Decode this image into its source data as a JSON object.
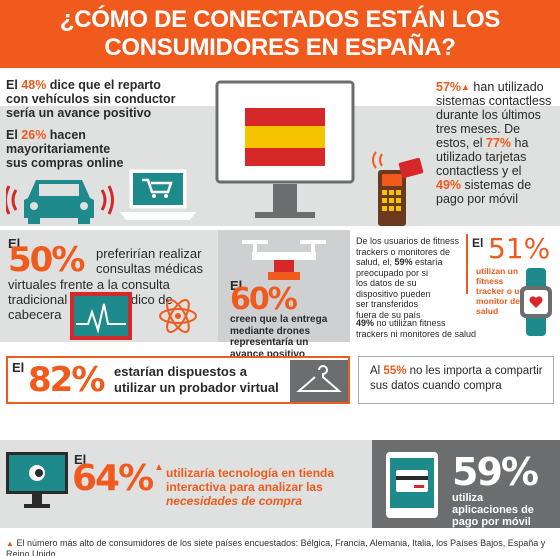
{
  "header": {
    "line1": "¿CÓMO DE CONECTADOS ESTÁN LOS",
    "line2": "CONSUMIDORES EN ESPAÑA?"
  },
  "top_left": {
    "s1_pre": "El ",
    "s1_pct": "48%",
    "s1_line1": " dice que el reparto",
    "s1_line2": "con vehículos sin conductor",
    "s1_line3": "sería un avance positivo",
    "s2_pre": "El ",
    "s2_pct": "26%",
    "s2_line1": " hacen",
    "s2_line2": "mayoritariamente",
    "s2_line3": "sus compras online"
  },
  "top_right": {
    "pct1": "57%",
    "l1": " han utilizado",
    "l2": "sistemas contactless",
    "l3": "durante los últimos",
    "l4": "tres meses. De",
    "l5_pre": "estos, el ",
    "pct2": "77%",
    "l5_post": " ha",
    "l6": "utilizado tarjetas",
    "l7": "contactless y el",
    "pct3": "49%",
    "l8_post": " sistemas de",
    "l9": "pago por móvil"
  },
  "middle_left": {
    "el": "El",
    "pct": "50%",
    "l1": "preferirían realizar",
    "l2": "consultas médicas",
    "l3": "virtuales frente a la consulta",
    "l4": "tradicional con su médico de",
    "l5": "cabecera"
  },
  "middle_center": {
    "el": "El",
    "pct": "60%",
    "l1": "creen que la entrega",
    "l2": "mediante drones",
    "l3": "representaría un",
    "l4": "avance positivo"
  },
  "middle_right": {
    "l1": "De los usuarios de fitness",
    "l2": "trackers o monitores de",
    "l3_pre": "salud, el, ",
    "pct": "59%",
    "l3_post": " estaría",
    "l4": "preocupado por si",
    "l5": "los datos de su",
    "l6": "dispositivo pueden",
    "l7": "ser transferidos",
    "l8": "fuera de su país",
    "big_el": "El",
    "big_pct": "51%",
    "b1": "utilizan un",
    "b2": "fitness",
    "b3": "tracker o un",
    "b4": "monitor de",
    "b5": "salud",
    "foot_pct": "49%",
    "foot_l1": " no utilizan fitness",
    "foot_l2": "trackers ni monitores de salud"
  },
  "row3_left": {
    "el": "El",
    "pct": "82%",
    "l1": "estarían dispuestos a",
    "l2": "utilizar un probador virtual"
  },
  "row3_right": {
    "pre": "Al ",
    "pct": "55%",
    "l1": " no les importa a compartir",
    "l2": "sus datos cuando compra"
  },
  "row4_left": {
    "el": "El",
    "pct": "64%",
    "l1": "utilizaría tecnología en tienda",
    "l2": "interactiva para analizar las",
    "l3": "necesidades de compra"
  },
  "row4_right": {
    "pct": "59%",
    "l1": "utiliza",
    "l2": "aplicaciones de",
    "l3": "pago por móvil"
  },
  "footer": {
    "text": "El número más alto de consumidores de los siete países encuestados: Bélgica, Francia, Alemania, Italia, los Países Bajos, España y Reino Unido."
  },
  "colors": {
    "accent": "#f05a1c",
    "gray": "#dfe0e0",
    "dark_gray": "#6b6d6f",
    "teal": "#1f8a8c",
    "red": "#d62828",
    "yellow": "#f5c400"
  }
}
